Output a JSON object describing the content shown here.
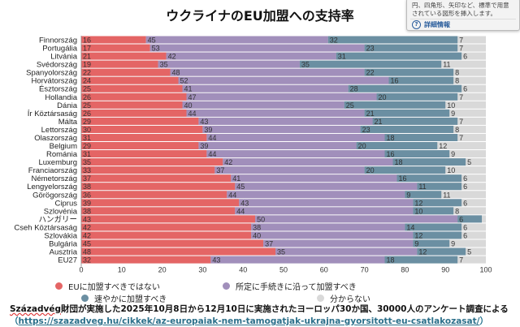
{
  "title": "ウクライナのEU加盟への支持率",
  "tooltip": {
    "text": "円、四角形、矢印など、標準で用意されている図形を挿入します。",
    "link": "詳細情報",
    "icon": "help-icon"
  },
  "chart_data": {
    "type": "bar",
    "orientation": "horizontal",
    "stacked": true,
    "categories": [
      "Finnország",
      "Portugália",
      "Litvánia",
      "Svédország",
      "Spanyolország",
      "Horvátország",
      "Észtország",
      "Hollandia",
      "Dánia",
      "Ír Köztársaság",
      "Málta",
      "Lettország",
      "Olaszország",
      "Belgium",
      "Románia",
      "Luxemburg",
      "Franciaország",
      "Németország",
      "Lengyelország",
      "Görögország",
      "Ciprus",
      "Szlovénia",
      "ハンガリー",
      "Cseh Köztársaság",
      "Szlovákia",
      "Bulgária",
      "Ausztria",
      "EU27"
    ],
    "series": [
      {
        "name": "EUに加盟すべきではない",
        "color": "#e46565",
        "values": [
          16,
          17,
          21,
          19,
          22,
          24,
          25,
          26,
          25,
          26,
          29,
          30,
          31,
          29,
          31,
          35,
          33,
          37,
          38,
          36,
          39,
          38,
          43,
          42,
          42,
          45,
          48,
          32
        ]
      },
      {
        "name": "所定に手続きに沿って加盟すべき",
        "color": "#a18fbb",
        "values": [
          45,
          53,
          42,
          35,
          48,
          52,
          41,
          47,
          40,
          44,
          43,
          39,
          44,
          39,
          44,
          42,
          37,
          41,
          45,
          44,
          43,
          44,
          50,
          38,
          40,
          37,
          35,
          43
        ]
      },
      {
        "name": "速やかに加盟すべき",
        "color": "#6b8fa2",
        "values": [
          32,
          23,
          31,
          35,
          22,
          16,
          28,
          20,
          25,
          21,
          21,
          23,
          18,
          20,
          16,
          18,
          20,
          16,
          11,
          9,
          12,
          10,
          6,
          14,
          12,
          9,
          12,
          18
        ]
      },
      {
        "name": "分からない",
        "color": "#d9d9d9",
        "values": [
          7,
          7,
          6,
          11,
          8,
          8,
          6,
          7,
          10,
          9,
          7,
          8,
          7,
          12,
          9,
          5,
          10,
          6,
          6,
          11,
          6,
          8,
          null,
          6,
          6,
          9,
          5,
          7
        ]
      }
    ],
    "xlim": [
      0,
      100
    ],
    "xticks": [
      "0",
      "10",
      "20",
      "30",
      "40",
      "50",
      "60",
      "70",
      "80",
      "90",
      "100"
    ],
    "legend_position": "bottom"
  },
  "footer": {
    "source_name": "Századvég",
    "source_text": "財団が実施した2025年10月8日から12月10日に実施されたヨーロッパ30か国、30000人のアンケート調査による",
    "url_open": "（",
    "url": "https://szazadveg.hu/cikkek/az-europaiak-nem-tamogatjak-ukrajna-gyorsitott-eu-csatlakozasat/",
    "url_close": "）"
  }
}
